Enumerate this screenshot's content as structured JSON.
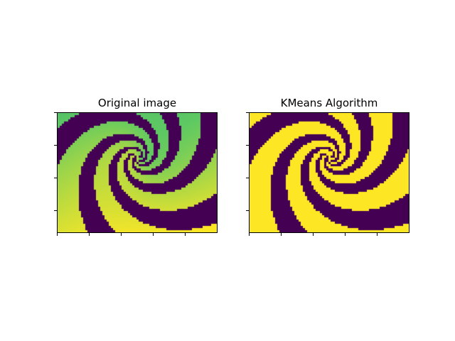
{
  "figure": {
    "panels": [
      {
        "title": "Original image",
        "colormap": "viridis"
      },
      {
        "title": "KMeans Algorithm",
        "colormap": "binary (2 clusters)"
      }
    ],
    "colors": {
      "dark": "#440154",
      "bright": "#fde725",
      "teal": "#21918c",
      "green": "#5ec962"
    },
    "tick_labels_shown": false
  }
}
